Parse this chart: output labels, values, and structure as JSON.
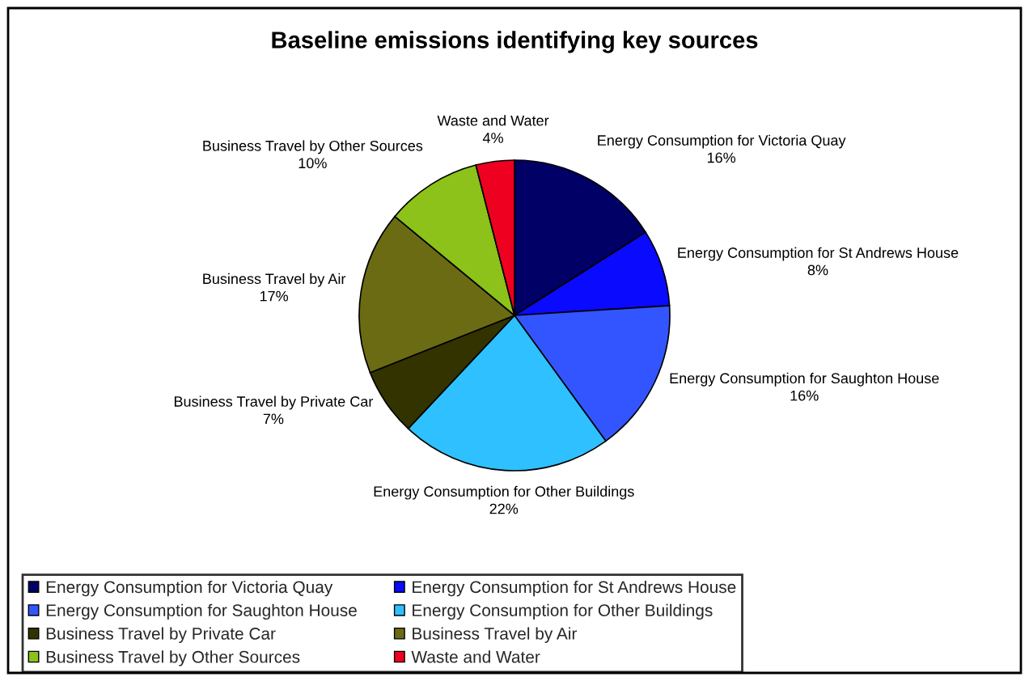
{
  "chart_data": {
    "type": "pie",
    "title": "Baseline emissions identifying key sources",
    "categories": [
      "Energy Consumption for Victoria Quay",
      "Energy Consumption for St Andrews House",
      "Energy Consumption for Saughton House",
      "Energy Consumption for Other Buildings",
      "Business Travel by Private Car",
      "Business Travel by Air",
      "Business Travel by Other Sources",
      "Waste and Water"
    ],
    "values": [
      16,
      8,
      16,
      22,
      7,
      17,
      10,
      4
    ],
    "value_labels": [
      "16%",
      "8%",
      "16%",
      "22%",
      "7%",
      "17%",
      "10%",
      "4%"
    ],
    "colors": [
      "#000066",
      "#0a0aff",
      "#3355ff",
      "#2ec0ff",
      "#333300",
      "#6b6b14",
      "#8cc21a",
      "#ee0020"
    ],
    "legend": "bottom left"
  }
}
